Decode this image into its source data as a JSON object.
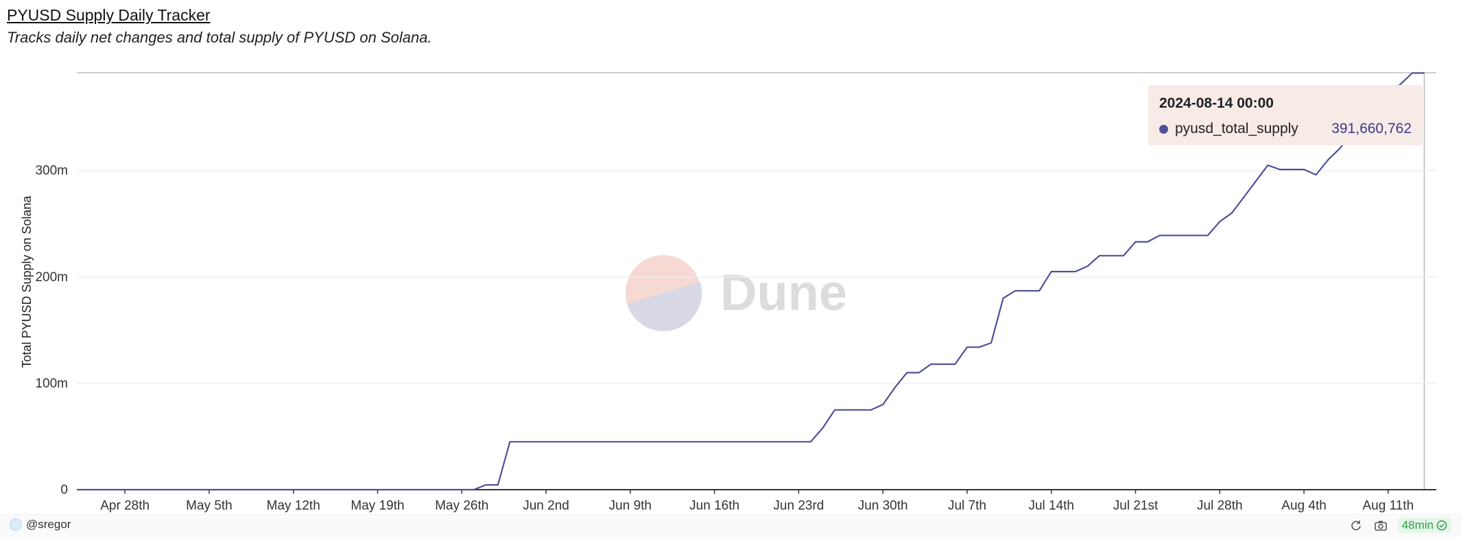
{
  "header": {
    "title": "PYUSD Supply Daily Tracker",
    "subtitle": "Tracks daily net changes and total supply of PYUSD on Solana."
  },
  "chart_data": {
    "type": "line",
    "ylabel": "Total PYUSD Supply on Solana",
    "ylim": [
      0,
      392000000
    ],
    "yticks": [
      0,
      100000000,
      200000000,
      300000000
    ],
    "ytick_labels": [
      "0",
      "100m",
      "200m",
      "300m"
    ],
    "x_range": [
      "2024-04-24",
      "2024-08-15"
    ],
    "xtick_dates": [
      "2024-04-28",
      "2024-05-05",
      "2024-05-12",
      "2024-05-19",
      "2024-05-26",
      "2024-06-02",
      "2024-06-09",
      "2024-06-16",
      "2024-06-23",
      "2024-06-30",
      "2024-07-07",
      "2024-07-14",
      "2024-07-21",
      "2024-07-28",
      "2024-08-04",
      "2024-08-11"
    ],
    "xtick_labels": [
      "Apr 28th",
      "May 5th",
      "May 12th",
      "May 19th",
      "May 26th",
      "Jun 2nd",
      "Jun 9th",
      "Jun 16th",
      "Jun 23rd",
      "Jun 30th",
      "Jul 7th",
      "Jul 14th",
      "Jul 21st",
      "Jul 28th",
      "Aug 4th",
      "Aug 11th"
    ],
    "grid": true,
    "series": [
      {
        "name": "pyusd_total_supply",
        "color": "#4f4f9a",
        "points": [
          [
            "2024-04-24",
            0
          ],
          [
            "2024-05-27",
            0
          ],
          [
            "2024-05-28",
            4500000
          ],
          [
            "2024-05-29",
            4500000
          ],
          [
            "2024-05-30",
            45000000
          ],
          [
            "2024-06-06",
            45000000
          ],
          [
            "2024-06-13",
            45000000
          ],
          [
            "2024-06-20",
            45000000
          ],
          [
            "2024-06-24",
            45000000
          ],
          [
            "2024-06-25",
            58000000
          ],
          [
            "2024-06-26",
            75000000
          ],
          [
            "2024-06-27",
            75000000
          ],
          [
            "2024-06-28",
            75000000
          ],
          [
            "2024-06-29",
            75000000
          ],
          [
            "2024-06-30",
            80000000
          ],
          [
            "2024-07-01",
            96000000
          ],
          [
            "2024-07-02",
            110000000
          ],
          [
            "2024-07-03",
            110000000
          ],
          [
            "2024-07-04",
            118000000
          ],
          [
            "2024-07-05",
            118000000
          ],
          [
            "2024-07-06",
            118000000
          ],
          [
            "2024-07-07",
            134000000
          ],
          [
            "2024-07-08",
            134000000
          ],
          [
            "2024-07-09",
            138000000
          ],
          [
            "2024-07-10",
            180000000
          ],
          [
            "2024-07-11",
            187000000
          ],
          [
            "2024-07-12",
            187000000
          ],
          [
            "2024-07-13",
            187000000
          ],
          [
            "2024-07-14",
            205000000
          ],
          [
            "2024-07-15",
            205000000
          ],
          [
            "2024-07-16",
            205000000
          ],
          [
            "2024-07-17",
            210000000
          ],
          [
            "2024-07-18",
            220000000
          ],
          [
            "2024-07-19",
            220000000
          ],
          [
            "2024-07-20",
            220000000
          ],
          [
            "2024-07-21",
            233000000
          ],
          [
            "2024-07-22",
            233000000
          ],
          [
            "2024-07-23",
            239000000
          ],
          [
            "2024-07-24",
            239000000
          ],
          [
            "2024-07-25",
            239000000
          ],
          [
            "2024-07-26",
            239000000
          ],
          [
            "2024-07-27",
            239000000
          ],
          [
            "2024-07-28",
            252000000
          ],
          [
            "2024-07-29",
            260000000
          ],
          [
            "2024-07-30",
            275000000
          ],
          [
            "2024-07-31",
            290000000
          ],
          [
            "2024-08-01",
            305000000
          ],
          [
            "2024-08-02",
            301000000
          ],
          [
            "2024-08-03",
            301000000
          ],
          [
            "2024-08-04",
            301000000
          ],
          [
            "2024-08-05",
            296000000
          ],
          [
            "2024-08-06",
            310000000
          ],
          [
            "2024-08-07",
            321000000
          ],
          [
            "2024-08-08",
            336000000
          ],
          [
            "2024-08-09",
            350000000
          ],
          [
            "2024-08-10",
            362000000
          ],
          [
            "2024-08-11",
            373000000
          ],
          [
            "2024-08-12",
            381000000
          ],
          [
            "2024-08-13",
            391660762
          ],
          [
            "2024-08-14",
            391660762
          ]
        ]
      }
    ]
  },
  "tooltip": {
    "date": "2024-08-14 00:00",
    "series_name": "pyusd_total_supply",
    "value": "391,660,762"
  },
  "watermark": {
    "text": "Dune"
  },
  "footer": {
    "author": "@sregor",
    "age": "48min",
    "icons": [
      "refresh-icon",
      "camera-icon",
      "check-circle-icon"
    ]
  }
}
